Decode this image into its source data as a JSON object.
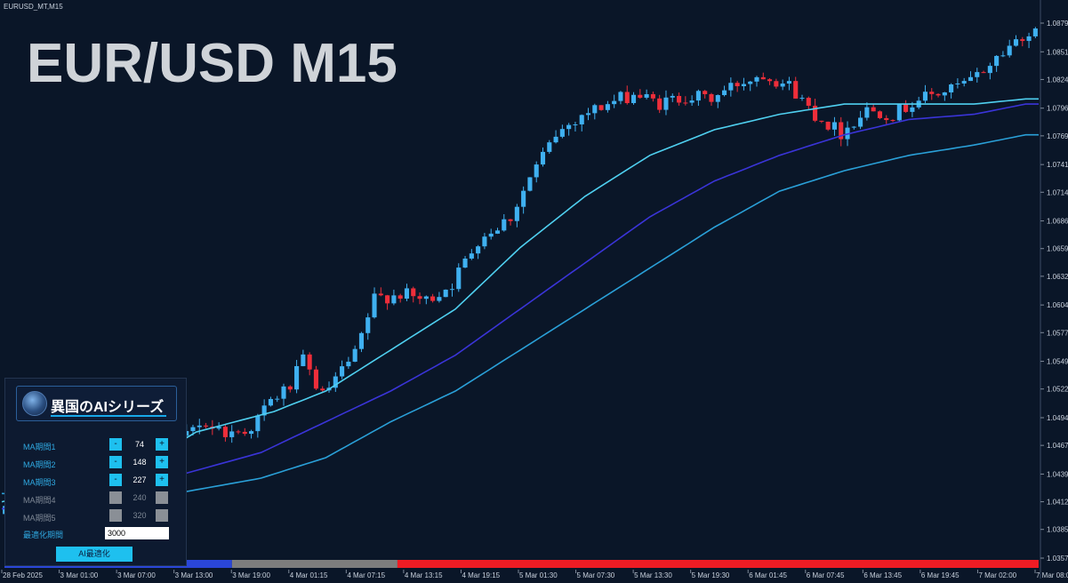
{
  "window": {
    "tab_label": "EURUSD_MT,M15"
  },
  "overlay_title": "EUR/USD M15",
  "panel": {
    "brand_title": "異国のAIシリーズ",
    "rows": [
      {
        "label": "MA期間1",
        "value": "74",
        "enabled": true
      },
      {
        "label": "MA期間2",
        "value": "148",
        "enabled": true
      },
      {
        "label": "MA期間3",
        "value": "227",
        "enabled": true
      },
      {
        "label": "MA期間4",
        "value": "240",
        "enabled": false
      },
      {
        "label": "MA期間5",
        "value": "320",
        "enabled": false
      }
    ],
    "minus_symbol": "-",
    "plus_symbol": "+",
    "opt_label": "最適化期間",
    "opt_value": "3000",
    "ai_button": "AI最適化"
  },
  "colors": {
    "background": "#0a1628",
    "bull": "#3fb0f0",
    "bear": "#ee2e3a",
    "ma1": "#4fd0f0",
    "ma2": "#3a34d8",
    "ma3": "#2aa0d8",
    "accent": "#1ec0ef"
  },
  "chart_data": {
    "type": "candlestick",
    "symbol": "EURUSD",
    "timeframe": "M15",
    "y_ticks": [
      "1.0879",
      "1.0851",
      "1.0824",
      "1.0796",
      "1.0769",
      "1.0741",
      "1.0714",
      "1.0686",
      "1.0659",
      "1.0632",
      "1.0604",
      "1.0577",
      "1.0549",
      "1.0522",
      "1.0494",
      "1.0467",
      "1.0439",
      "1.0412",
      "1.0385",
      "1.0357"
    ],
    "ylim": [
      1.0357,
      1.0879
    ],
    "x_ticks": [
      "28 Feb 2025",
      "3 Mar 01:00",
      "3 Mar 07:00",
      "3 Mar 13:00",
      "3 Mar 19:00",
      "4 Mar 01:15",
      "4 Mar 07:15",
      "4 Mar 13:15",
      "4 Mar 19:15",
      "5 Mar 01:30",
      "5 Mar 07:30",
      "5 Mar 13:30",
      "5 Mar 19:30",
      "6 Mar 01:45",
      "6 Mar 07:45",
      "6 Mar 13:45",
      "6 Mar 19:45",
      "7 Mar 02:00",
      "7 Mar 08:00"
    ],
    "price_path": [
      [
        0,
        1.04
      ],
      [
        18,
        1.043
      ],
      [
        21,
        1.0495
      ],
      [
        24,
        1.0485
      ],
      [
        28,
        1.047
      ],
      [
        31,
        1.049
      ],
      [
        36,
        1.0478
      ],
      [
        39,
        1.0485
      ],
      [
        42,
        1.051
      ],
      [
        45,
        1.0525
      ],
      [
        47,
        1.055
      ],
      [
        50,
        1.0515
      ],
      [
        55,
        1.0555
      ],
      [
        58,
        1.061
      ],
      [
        62,
        1.0615
      ],
      [
        66,
        1.0608
      ],
      [
        70,
        1.0625
      ],
      [
        74,
        1.0668
      ],
      [
        79,
        1.069
      ],
      [
        82,
        1.0728
      ],
      [
        86,
        1.077
      ],
      [
        90,
        1.079
      ],
      [
        94,
        1.08
      ],
      [
        98,
        1.081
      ],
      [
        102,
        1.08
      ],
      [
        106,
        1.0808
      ],
      [
        110,
        1.0805
      ],
      [
        114,
        1.082
      ],
      [
        118,
        1.083
      ],
      [
        122,
        1.0818
      ],
      [
        126,
        1.079
      ],
      [
        130,
        1.0772
      ],
      [
        134,
        1.0795
      ],
      [
        138,
        1.079
      ],
      [
        142,
        1.0805
      ],
      [
        146,
        1.0812
      ],
      [
        150,
        1.0822
      ],
      [
        154,
        1.0845
      ],
      [
        158,
        1.0868
      ]
    ],
    "moving_averages": [
      {
        "name": "MA期間1",
        "period": 74,
        "points": [
          [
            0,
            1.0412
          ],
          [
            18,
            1.0435
          ],
          [
            30,
            1.048
          ],
          [
            42,
            1.05
          ],
          [
            50,
            1.052
          ],
          [
            60,
            1.056
          ],
          [
            70,
            1.06
          ],
          [
            80,
            1.066
          ],
          [
            90,
            1.071
          ],
          [
            100,
            1.075
          ],
          [
            110,
            1.0775
          ],
          [
            120,
            1.079
          ],
          [
            130,
            1.08
          ],
          [
            140,
            1.08
          ],
          [
            150,
            1.08
          ],
          [
            158,
            1.0805
          ]
        ]
      },
      {
        "name": "MA期間2",
        "period": 148,
        "points": [
          [
            0,
            1.0405
          ],
          [
            20,
            1.0425
          ],
          [
            40,
            1.046
          ],
          [
            60,
            1.052
          ],
          [
            70,
            1.0555
          ],
          [
            80,
            1.06
          ],
          [
            90,
            1.0645
          ],
          [
            100,
            1.069
          ],
          [
            110,
            1.0725
          ],
          [
            120,
            1.075
          ],
          [
            130,
            1.077
          ],
          [
            140,
            1.0785
          ],
          [
            150,
            1.079
          ],
          [
            158,
            1.08
          ]
        ]
      },
      {
        "name": "MA期間3",
        "period": 227,
        "points": [
          [
            0,
            1.042
          ],
          [
            15,
            1.0418
          ],
          [
            25,
            1.0418
          ],
          [
            40,
            1.0435
          ],
          [
            50,
            1.0455
          ],
          [
            60,
            1.049
          ],
          [
            70,
            1.052
          ],
          [
            80,
            1.056
          ],
          [
            90,
            1.06
          ],
          [
            100,
            1.064
          ],
          [
            110,
            1.068
          ],
          [
            120,
            1.0715
          ],
          [
            130,
            1.0735
          ],
          [
            140,
            1.075
          ],
          [
            150,
            1.076
          ],
          [
            158,
            1.077
          ]
        ]
      }
    ],
    "bottom_bar": [
      {
        "color": "#2a46d8",
        "from": 0,
        "to": 0.22
      },
      {
        "color": "#7d7d7d",
        "from": 0.22,
        "to": 0.38
      },
      {
        "color": "#ee1c24",
        "from": 0.38,
        "to": 1.0
      }
    ],
    "grid": false
  }
}
